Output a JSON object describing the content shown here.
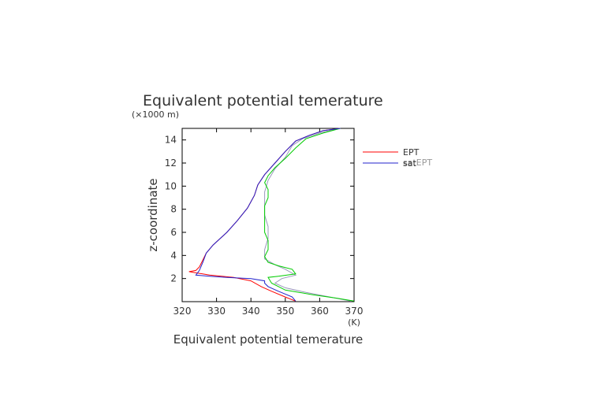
{
  "chart_data": {
    "type": "line",
    "title": "Equivalent potential temerature",
    "xlabel": "Equivalent potential temerature",
    "ylabel": "z-coordinate",
    "x_unit": "(K)",
    "y_unit": "(×1000 m)",
    "xlim": [
      320,
      370
    ],
    "ylim": [
      0,
      15
    ],
    "x_ticks": [
      320,
      330,
      340,
      350,
      360,
      370
    ],
    "y_ticks": [
      2,
      4,
      6,
      8,
      10,
      12,
      14
    ],
    "grid": false,
    "legend_position": "right",
    "legend": [
      "EPT",
      "satEPT",
      "sat"
    ],
    "series": [
      {
        "name": "EPT",
        "color": "#ff0000",
        "points": [
          [
            353,
            0.05
          ],
          [
            350,
            0.4
          ],
          [
            346,
            0.9
          ],
          [
            343,
            1.3
          ],
          [
            340,
            1.8
          ],
          [
            335,
            2.1
          ],
          [
            328,
            2.3
          ],
          [
            322,
            2.6
          ],
          [
            324,
            2.7
          ],
          [
            325,
            3.0
          ],
          [
            326,
            3.6
          ],
          [
            327,
            4.2
          ],
          [
            329,
            4.9
          ],
          [
            333,
            6.0
          ],
          [
            336,
            7.0
          ],
          [
            339,
            8.1
          ],
          [
            341,
            9.2
          ],
          [
            342,
            10.1
          ],
          [
            344,
            11.0
          ],
          [
            347,
            12.0
          ],
          [
            350,
            13.0
          ],
          [
            353,
            13.9
          ],
          [
            357,
            14.4
          ],
          [
            361,
            14.8
          ],
          [
            366,
            15.0
          ]
        ]
      },
      {
        "name": "satEPT",
        "color": "#9999bb",
        "points": [
          [
            369,
            0.05
          ],
          [
            363,
            0.4
          ],
          [
            356,
            0.8
          ],
          [
            350,
            1.2
          ],
          [
            347,
            1.6
          ],
          [
            349,
            2.0
          ],
          [
            353,
            2.3
          ],
          [
            350,
            2.8
          ],
          [
            347,
            3.2
          ],
          [
            344,
            3.7
          ],
          [
            344,
            4.5
          ],
          [
            345,
            5.5
          ],
          [
            345,
            6.5
          ],
          [
            344,
            7.5
          ],
          [
            344,
            8.5
          ],
          [
            344,
            9.5
          ],
          [
            345,
            10.5
          ],
          [
            347,
            11.5
          ],
          [
            350,
            12.5
          ],
          [
            352,
            13.5
          ],
          [
            355,
            14.1
          ],
          [
            360,
            14.6
          ],
          [
            366,
            15.0
          ]
        ]
      },
      {
        "name": "",
        "color": "#00cc00",
        "points": [
          [
            370,
            0.05
          ],
          [
            365,
            0.3
          ],
          [
            358,
            0.6
          ],
          [
            350,
            1.0
          ],
          [
            346,
            1.6
          ],
          [
            345,
            2.1
          ],
          [
            348,
            2.2
          ],
          [
            353,
            2.4
          ],
          [
            352,
            2.8
          ],
          [
            348,
            3.1
          ],
          [
            345,
            3.4
          ],
          [
            344,
            3.9
          ],
          [
            345,
            4.5
          ],
          [
            345,
            5.3
          ],
          [
            344,
            6.0
          ],
          [
            344,
            6.8
          ],
          [
            344,
            7.6
          ],
          [
            344,
            8.3
          ],
          [
            345,
            9.0
          ],
          [
            345,
            9.7
          ],
          [
            344,
            10.3
          ],
          [
            345,
            10.9
          ],
          [
            347,
            11.6
          ],
          [
            350,
            12.4
          ],
          [
            353,
            13.3
          ],
          [
            356,
            14.1
          ],
          [
            361,
            14.6
          ],
          [
            366,
            15.0
          ]
        ]
      },
      {
        "name": "sat",
        "color": "#2222cc",
        "points": [
          [
            353,
            0.05
          ],
          [
            352,
            0.4
          ],
          [
            348,
            0.9
          ],
          [
            345,
            1.3
          ],
          [
            344,
            1.6
          ],
          [
            344,
            1.8
          ],
          [
            340,
            2.0
          ],
          [
            333,
            2.1
          ],
          [
            328,
            2.2
          ],
          [
            324,
            2.3
          ],
          [
            325,
            2.7
          ],
          [
            326,
            3.4
          ],
          [
            327,
            4.2
          ],
          [
            329,
            4.9
          ],
          [
            333,
            6.0
          ],
          [
            336,
            7.0
          ],
          [
            339,
            8.1
          ],
          [
            341,
            9.2
          ],
          [
            342,
            10.1
          ],
          [
            344,
            11.0
          ],
          [
            347,
            12.0
          ],
          [
            350,
            13.0
          ],
          [
            353,
            13.9
          ],
          [
            357,
            14.4
          ],
          [
            361,
            14.8
          ],
          [
            366,
            15.0
          ]
        ]
      }
    ]
  }
}
